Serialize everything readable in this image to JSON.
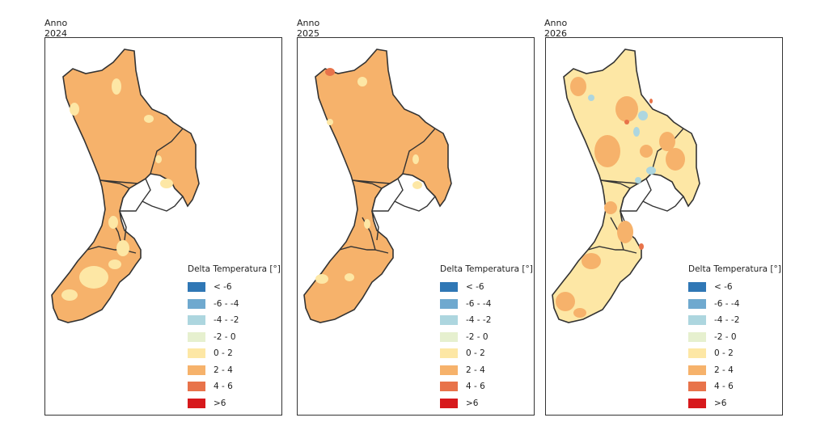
{
  "panels": [
    {
      "title": "Anno 2024",
      "variant": "warm"
    },
    {
      "title": "Anno 2025",
      "variant": "warmer"
    },
    {
      "title": "Anno 2026",
      "variant": "mixed"
    }
  ],
  "legend": {
    "title": "Delta Temperatura [°]",
    "classes": [
      {
        "label": "< -6",
        "color": "#2f77b5"
      },
      {
        "label": "-6 - -4",
        "color": "#6fa9cf"
      },
      {
        "label": "-4 - -2",
        "color": "#add6df"
      },
      {
        "label": "-2 - 0",
        "color": "#e6f0cf"
      },
      {
        "label": "0 - 2",
        "color": "#fde7a5"
      },
      {
        "label": "2 - 4",
        "color": "#f6b26b"
      },
      {
        "label": "4 - 6",
        "color": "#e8734a"
      },
      {
        "label": ">6",
        "color": "#d7191c"
      }
    ]
  },
  "colors": {
    "boundary": "#333333",
    "base_warm": "#f6b26b",
    "patch_cool": "#fde7a5",
    "patch_hot": "#e8734a",
    "patch_blue": "#add6df"
  }
}
